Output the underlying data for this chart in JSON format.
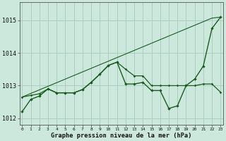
{
  "x": [
    0,
    1,
    2,
    3,
    4,
    5,
    6,
    7,
    8,
    9,
    10,
    11,
    12,
    13,
    14,
    15,
    16,
    17,
    18,
    19,
    20,
    21,
    22,
    23
  ],
  "line_straight": [
    1012.65,
    1012.76,
    1012.87,
    1012.98,
    1013.09,
    1013.2,
    1013.31,
    1013.42,
    1013.53,
    1013.64,
    1013.75,
    1013.86,
    1013.97,
    1014.08,
    1014.19,
    1014.3,
    1014.41,
    1014.52,
    1014.63,
    1014.74,
    1014.85,
    1014.96,
    1015.07,
    1015.1
  ],
  "line_wavy": [
    1012.65,
    1012.7,
    1012.75,
    1012.9,
    1012.78,
    1012.78,
    1012.78,
    1012.88,
    1013.1,
    1013.35,
    1013.62,
    1013.72,
    1013.5,
    1013.3,
    1013.3,
    1013.0,
    1013.0,
    1013.0,
    1013.0,
    1013.0,
    1013.0,
    1013.05,
    1013.05,
    1012.8
  ],
  "line_volatile": [
    1012.2,
    1012.58,
    1012.68,
    1012.9,
    1012.78,
    1012.78,
    1012.78,
    1012.88,
    1013.1,
    1013.35,
    1013.62,
    1013.72,
    1013.05,
    1013.05,
    1013.1,
    1012.85,
    1012.85,
    1012.3,
    1012.38,
    1013.0,
    1013.2,
    1013.6,
    1014.75,
    1015.1
  ],
  "bg_color": "#cce8dc",
  "grid_color": "#aacfbf",
  "line_color": "#1a5c20",
  "ylabel_ticks": [
    1012,
    1013,
    1014,
    1015
  ],
  "xlabel": "Graphe pression niveau de la mer (hPa)",
  "ylim": [
    1011.8,
    1015.55
  ],
  "xlim": [
    -0.3,
    23.3
  ]
}
